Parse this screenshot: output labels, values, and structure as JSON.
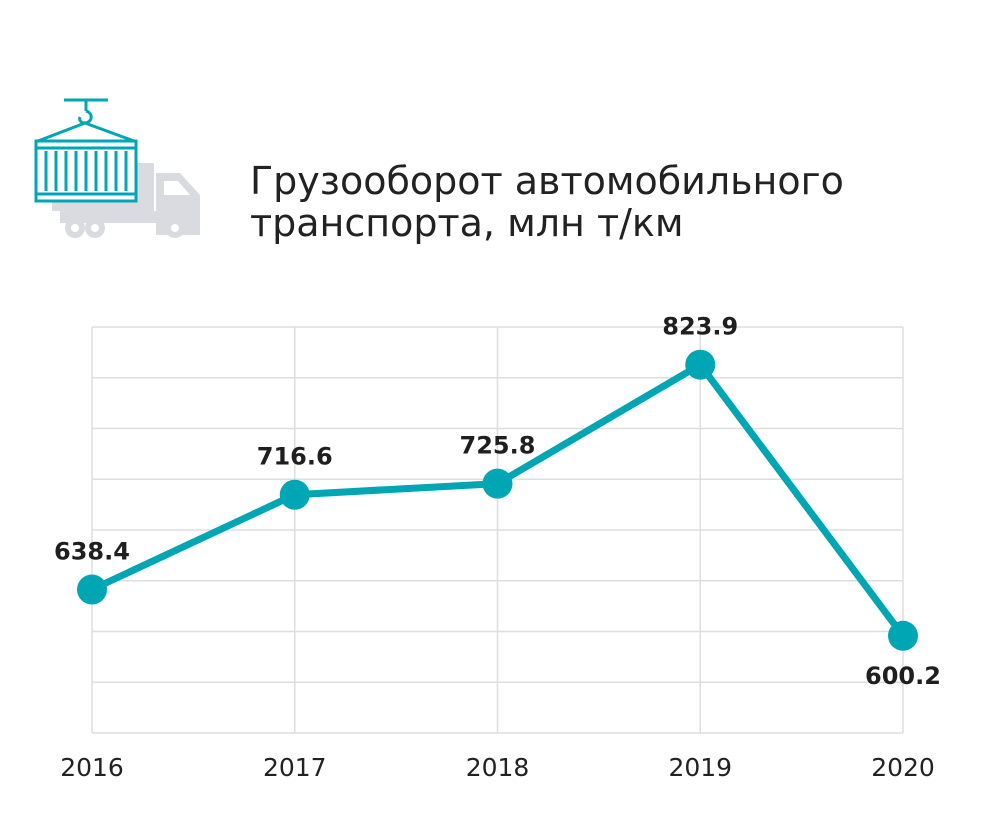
{
  "header": {
    "title_line1": "Грузооборот автомобильного",
    "title_line2": "транспорта, млн т/км",
    "icon": "crane-container-truck-icon"
  },
  "colors": {
    "accent": "#00a6b4",
    "truck": "#d9dbe0",
    "grid": "#dedede",
    "text": "#222222"
  },
  "chart_data": {
    "type": "line",
    "title": "Грузооборот автомобильного транспорта, млн т/км",
    "categories": [
      "2016",
      "2017",
      "2018",
      "2019",
      "2020"
    ],
    "series": [
      {
        "values": [
          638.4,
          716.6,
          725.8,
          823.9,
          600.2
        ]
      }
    ],
    "data_labels": [
      "638.4",
      "716.6",
      "725.8",
      "823.9",
      "600.2"
    ],
    "ylim": [
      520,
      855
    ],
    "grid": true,
    "legend": "none"
  }
}
